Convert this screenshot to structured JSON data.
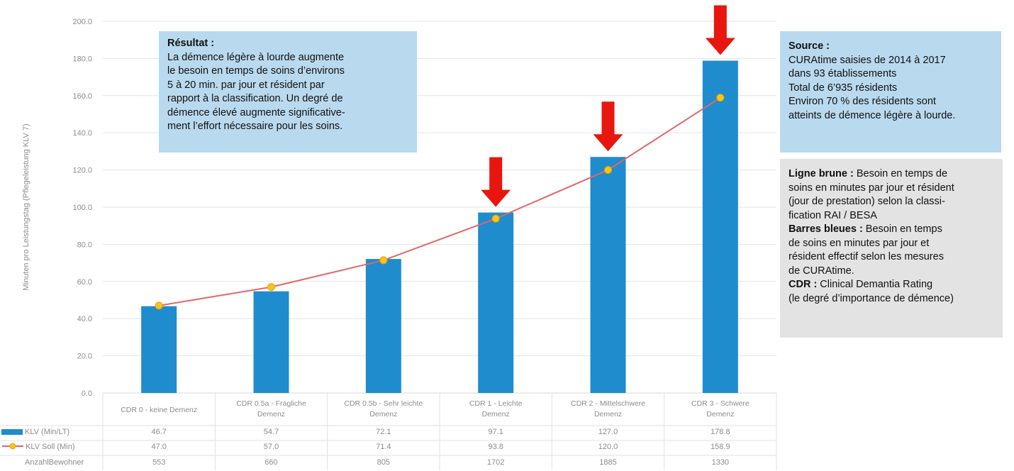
{
  "chart_data": {
    "type": "bar",
    "ylabel": "Minuten pro Leistungstag (Pflegeleistung KLV 7)",
    "ylim": [
      0,
      200
    ],
    "yticks": [
      "0.0",
      "20.0",
      "40.0",
      "60.0",
      "80.0",
      "100.0",
      "120.0",
      "140.0",
      "160.0",
      "180.0",
      "200.0"
    ],
    "grid": true,
    "categories": [
      [
        "CDR 0 - keine Demenz"
      ],
      [
        "CDR 0.5a - Fragliche",
        "Demenz"
      ],
      [
        "CDR 0.5b - Sehr leichte",
        "Demenz"
      ],
      [
        "CDR 1 - Leichte",
        "Demenz"
      ],
      [
        "CDR 2 - Mittelschwere",
        "Demenz"
      ],
      [
        "CDR 3 - Schwere",
        "Demenz"
      ]
    ],
    "series": [
      {
        "name": "KLV (Min/LT)",
        "type": "bar",
        "color": "#1f8ccd",
        "values": [
          46.7,
          54.7,
          72.1,
          97.1,
          127.0,
          178.8
        ],
        "labels": [
          "46.7",
          "54.7",
          "72.1",
          "97.1",
          "127.0",
          "178.8"
        ]
      },
      {
        "name": "KLV Soll (Min)",
        "type": "line",
        "color": "#e26666",
        "marker_color": "#f5c518",
        "values": [
          47.0,
          57.0,
          71.4,
          93.8,
          120.0,
          158.9
        ],
        "labels": [
          "47.0",
          "57.0",
          "71.4",
          "93.8",
          "120.0",
          "158.9"
        ]
      }
    ],
    "table_extra_row": {
      "name": "AnzahlBewohner",
      "values": [
        "553",
        "660",
        "805",
        "1702",
        "1885",
        "1330"
      ]
    },
    "arrows": {
      "color": "#e8160f",
      "categories": [
        3,
        4,
        5
      ]
    }
  },
  "boxes": {
    "result": {
      "title": "Résultat :",
      "lines": [
        "La démence légère à lourde augmente",
        "le besoin en temps de soins d’environs",
        "5 à 20 min. par jour et résident par",
        "rapport à la classification. Un degré de",
        "démence élevé augmente significative-",
        "ment l’effort nécessaire pour les soins."
      ]
    },
    "source": {
      "title": "Source :",
      "lines": [
        "CURAtime saisies de 2014 à 2017",
        "dans 93 établissements",
        "Total de 6’935 résidents",
        "Environ 70 % des résidents sont",
        "atteints de démence légère à lourde."
      ]
    },
    "legend_text": {
      "brown_label": "Ligne brune :",
      "brown_lines": [
        " Besoin en temps de",
        "soins en minutes par jour et résident",
        "(jour de prestation) selon la classi-",
        "fication RAI / BESA"
      ],
      "blue_label": "Barres bleues :",
      "blue_lines": [
        " Besoin en temps",
        "de soins en minutes par jour et",
        "résident effectif selon les mesures",
        "de CURAtime."
      ],
      "cdr_label": "CDR :",
      "cdr_lines": [
        " Clinical Demantia Rating",
        "(le degré d’importance de démence)"
      ]
    }
  }
}
